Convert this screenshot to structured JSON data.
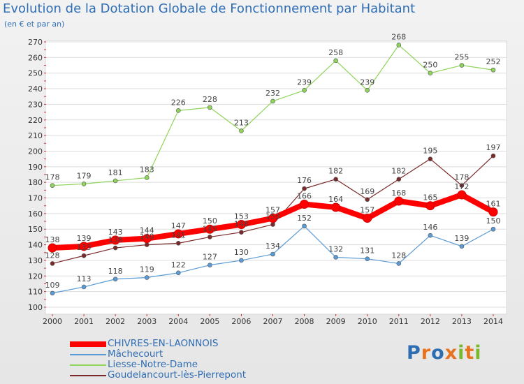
{
  "title": "Evolution de la Dotation Globale de Fonctionnement par Habitant",
  "subtitle": "(en € et par an)",
  "chart_data": {
    "type": "line",
    "title": "Evolution de la Dotation Globale de Fonctionnement par Habitant",
    "subtitle": "(en € et par an)",
    "x": [
      "2000",
      "2001",
      "2002",
      "2003",
      "2004",
      "2005",
      "2006",
      "2007",
      "2008",
      "2009",
      "2010",
      "2011",
      "2012",
      "2013",
      "2014"
    ],
    "ylim": [
      100,
      270
    ],
    "y_ticks": [
      100,
      110,
      120,
      130,
      140,
      150,
      160,
      170,
      180,
      190,
      200,
      210,
      220,
      230,
      240,
      250,
      260,
      270
    ],
    "grid": true,
    "legend_position": "bottom-left",
    "series": [
      {
        "name": "CHIVRES-EN-LAONNOIS",
        "color": "#ff0000",
        "values": [
          138,
          139,
          143,
          144,
          147,
          150,
          153,
          157,
          166,
          164,
          157,
          168,
          165,
          172,
          161
        ]
      },
      {
        "name": "Mâchecourt",
        "color": "#5b9bd5",
        "values": [
          109,
          113,
          118,
          119,
          122,
          127,
          130,
          134,
          152,
          132,
          131,
          128,
          146,
          139,
          150
        ]
      },
      {
        "name": "Liesse-Notre-Dame",
        "color": "#8fd45a",
        "values": [
          178,
          179,
          181,
          183,
          226,
          228,
          213,
          232,
          239,
          258,
          239,
          268,
          250,
          255,
          252
        ]
      },
      {
        "name": "Goudelancourt-lès-Pierrepont",
        "color": "#7a2a2a",
        "values": [
          128,
          133,
          138,
          140,
          141,
          145,
          148,
          153,
          176,
          182,
          169,
          182,
          195,
          178,
          197
        ]
      }
    ]
  },
  "logo": {
    "letters": [
      "P",
      "r",
      "o",
      "x",
      "i",
      "t",
      "i"
    ],
    "colors": [
      "#2f6db3",
      "#e8731f",
      "#2f6db3",
      "#e8731f",
      "#7ab82f",
      "#e8731f",
      "#7ab82f"
    ]
  }
}
